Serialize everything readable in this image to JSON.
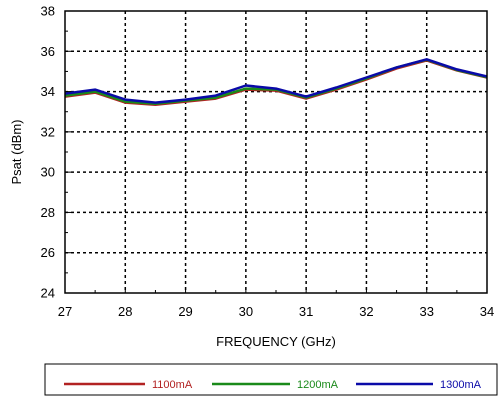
{
  "chart_data": {
    "type": "line",
    "xlabel": "FREQUENCY (GHz)",
    "ylabel": "Psat (dBm)",
    "xlim": [
      27,
      34
    ],
    "ylim": [
      24,
      38
    ],
    "xticks": [
      27,
      28,
      29,
      30,
      31,
      32,
      33,
      34
    ],
    "yticks": [
      24,
      26,
      28,
      30,
      32,
      34,
      36,
      38
    ],
    "grid": true,
    "legend_position": "bottom",
    "series": [
      {
        "name": "1100mA",
        "color": "#b22222",
        "x": [
          27,
          27.5,
          28,
          28.5,
          29,
          29.5,
          30,
          30.5,
          31,
          31.5,
          32,
          32.5,
          33,
          33.5,
          34
        ],
        "y": [
          33.75,
          33.95,
          33.45,
          33.35,
          33.5,
          33.65,
          34.1,
          34.05,
          33.65,
          34.1,
          34.6,
          35.15,
          35.55,
          35.05,
          34.7
        ]
      },
      {
        "name": "1200mA",
        "color": "#1a8a1a",
        "x": [
          27,
          27.5,
          28,
          28.5,
          29,
          29.5,
          30,
          30.5,
          31,
          31.5,
          32,
          32.5,
          33,
          33.5,
          34
        ],
        "y": [
          33.8,
          34.0,
          33.5,
          33.4,
          33.55,
          33.7,
          34.15,
          34.1,
          33.7,
          34.15,
          34.65,
          35.2,
          35.58,
          35.07,
          34.72
        ]
      },
      {
        "name": "1300mA",
        "color": "#0a0aa8",
        "x": [
          27,
          27.5,
          28,
          28.5,
          29,
          29.5,
          30,
          30.5,
          31,
          31.5,
          32,
          32.5,
          33,
          33.5,
          34
        ],
        "y": [
          33.9,
          34.1,
          33.6,
          33.45,
          33.6,
          33.8,
          34.3,
          34.15,
          33.75,
          34.2,
          34.7,
          35.2,
          35.6,
          35.1,
          34.75
        ]
      }
    ]
  }
}
